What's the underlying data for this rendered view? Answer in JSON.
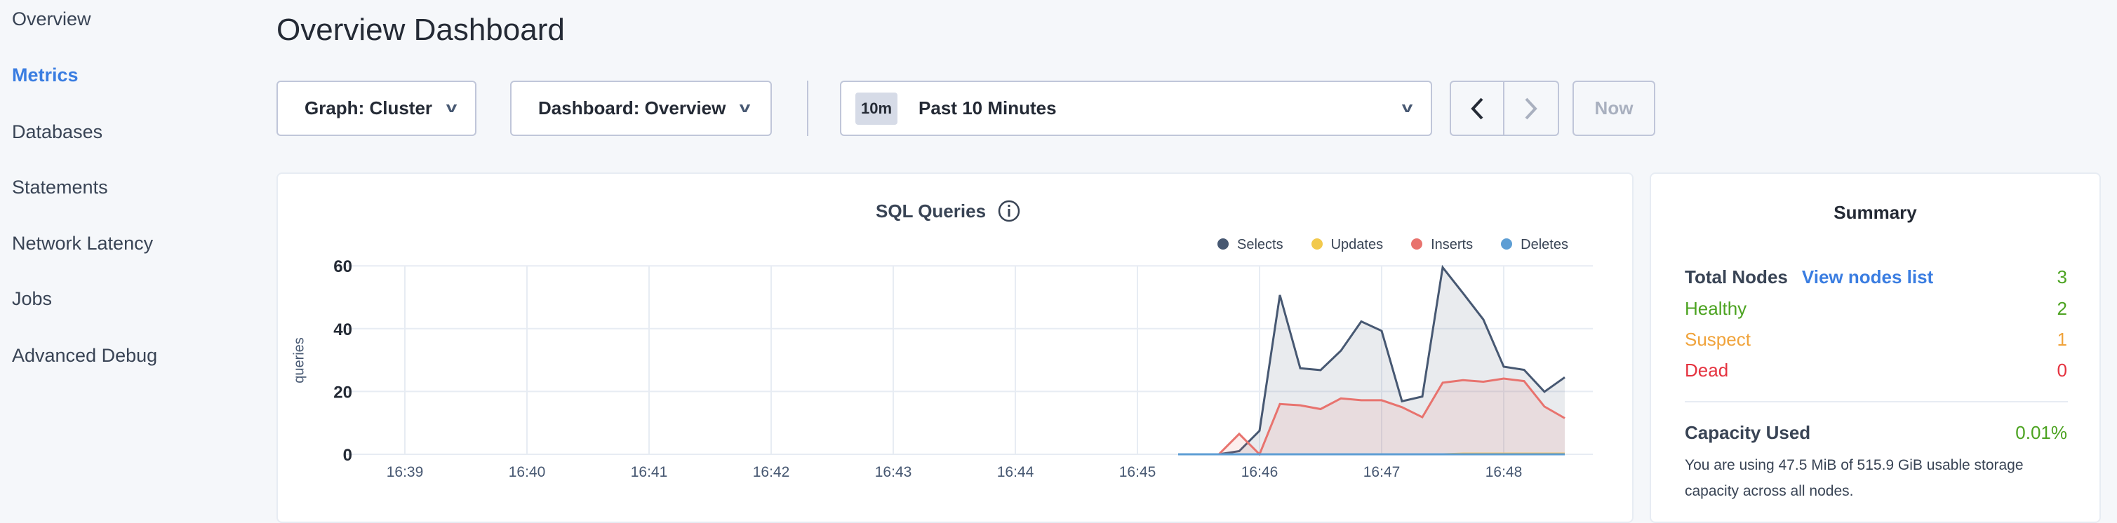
{
  "sidebar": {
    "items": [
      {
        "label": "Overview"
      },
      {
        "label": "Metrics",
        "active": true
      },
      {
        "label": "Databases"
      },
      {
        "label": "Statements"
      },
      {
        "label": "Network Latency"
      },
      {
        "label": "Jobs"
      },
      {
        "label": "Advanced Debug"
      }
    ]
  },
  "header": {
    "title": "Overview Dashboard"
  },
  "toolbar": {
    "graph_label": "Graph: Cluster",
    "dashboard_label": "Dashboard: Overview",
    "time_badge": "10m",
    "time_label": "Past 10 Minutes",
    "now_label": "Now",
    "prev_icon": "chevron-left-icon",
    "next_icon": "chevron-right-icon"
  },
  "chart_data": {
    "type": "area",
    "title": "SQL Queries",
    "ylabel": "queries",
    "ylim": [
      0,
      60
    ],
    "yticks": [
      "0",
      "20",
      "40",
      "60"
    ],
    "xticks": [
      "16:39",
      "16:40",
      "16:41",
      "16:42",
      "16:43",
      "16:44",
      "16:45",
      "16:46",
      "16:47",
      "16:48"
    ],
    "grid": true,
    "legend_position": "top-right",
    "x": [
      "16:45:20",
      "16:45:30",
      "16:45:40",
      "16:45:50",
      "16:46:00",
      "16:46:10",
      "16:46:20",
      "16:46:30",
      "16:46:40",
      "16:46:50",
      "16:47:00",
      "16:47:10",
      "16:47:20",
      "16:47:30",
      "16:47:40",
      "16:47:50",
      "16:48:00",
      "16:48:10",
      "16:48:20",
      "16:48:30"
    ],
    "series": [
      {
        "name": "Selects",
        "color": "#475872",
        "values": [
          0,
          0,
          0,
          1,
          7.5,
          50.7,
          27.4,
          26.8,
          33,
          42.3,
          39.3,
          16.9,
          18.4,
          59.5,
          51.3,
          42.9,
          27.9,
          26.9,
          19.9,
          24.5
        ]
      },
      {
        "name": "Updates",
        "color": "#f2c94c",
        "values": [
          0,
          0,
          0,
          0,
          0,
          0,
          0,
          0,
          0,
          0,
          0,
          0,
          0,
          0,
          0.2,
          0.2,
          0.2,
          0.2,
          0.2,
          0.2
        ]
      },
      {
        "name": "Inserts",
        "color": "#e8736e",
        "values": [
          0,
          0,
          0,
          6.5,
          0,
          16,
          15.6,
          14.4,
          17.8,
          17.2,
          17.2,
          15,
          11.8,
          22.8,
          23.6,
          23.1,
          24.1,
          23.3,
          15.2,
          11.5
        ]
      },
      {
        "name": "Deletes",
        "color": "#5e9ed4",
        "values": [
          0,
          0,
          0,
          0,
          0,
          0,
          0,
          0,
          0,
          0,
          0,
          0,
          0,
          0,
          0,
          0,
          0,
          0,
          0,
          0
        ]
      }
    ]
  },
  "summary": {
    "title": "Summary",
    "total_label": "Total Nodes",
    "view_link": "View nodes list",
    "total": "3",
    "healthy_label": "Healthy",
    "healthy": "2",
    "suspect_label": "Suspect",
    "suspect": "1",
    "dead_label": "Dead",
    "dead": "0",
    "capacity_label": "Capacity Used",
    "capacity": "0.01%",
    "capacity_text": "You are using 47.5 MiB of 515.9 GiB usable storage capacity across all nodes.",
    "colors": {
      "healthy": "#4ca321",
      "suspect": "#f0a33b",
      "dead": "#e5323f",
      "link": "#3a7de1"
    }
  }
}
